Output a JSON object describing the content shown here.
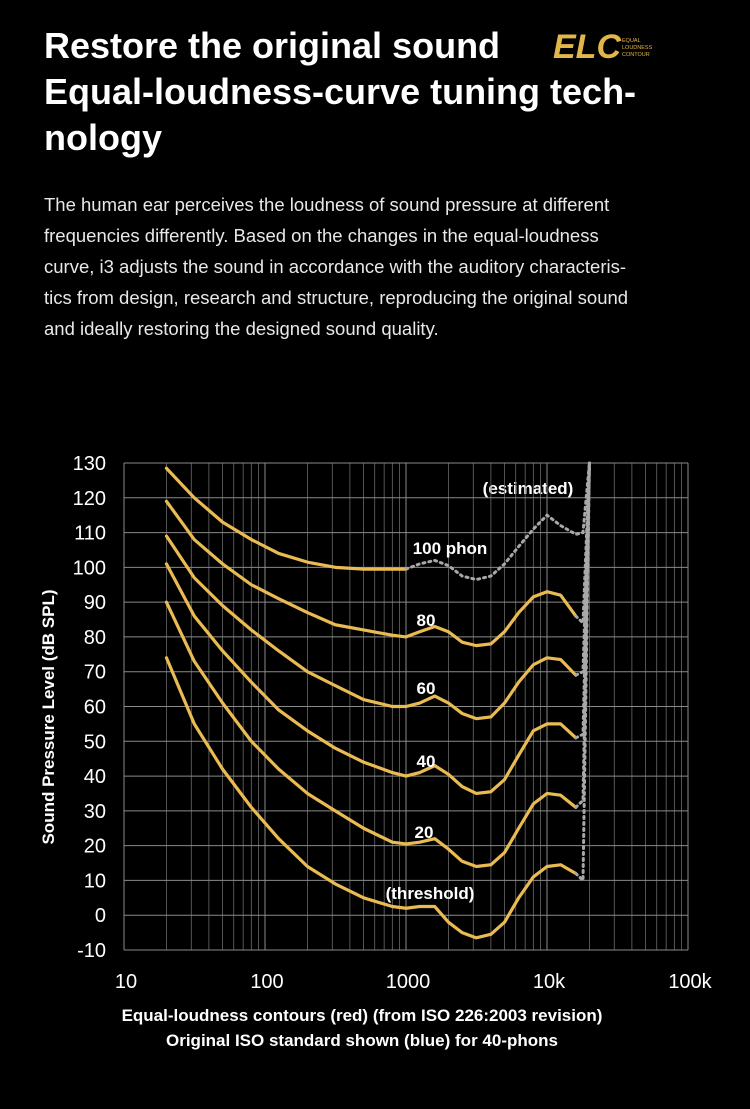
{
  "header": {
    "title": [
      "Restore the original sound",
      "Equal-loudness-curve tuning tech-",
      "nology"
    ],
    "logo": {
      "mark": "ELC",
      "lines": [
        "EQUAL",
        "LOUDNESS",
        "CONTOUR"
      ]
    }
  },
  "paragraph": [
    "The human ear perceives the loudness of sound pressure at different",
    "frequencies differently. Based on the changes in the equal-loudness",
    "curve, i3 adjusts the sound in accordance with the auditory characteris-",
    "tics from design, research and structure, reproducing the original sound",
    "and ideally restoring the designed sound quality."
  ],
  "chart_data": {
    "type": "line",
    "x_label": "Equal-loudness contours (red) (from ISO 226:2003 revision)",
    "x_label_2": "Original ISO standard shown (blue) for 40-phons",
    "y_label": "Sound Pressure Level (dB SPL)",
    "annotations": [
      "(estimated)"
    ],
    "x_scale": "log",
    "grid": true,
    "xlim": [
      10,
      100000
    ],
    "xticks": [
      10,
      100,
      1000,
      {
        "value": 10000,
        "label": "10k"
      },
      {
        "value": 100000,
        "label": "100k"
      }
    ],
    "ylim": [
      -10,
      130
    ],
    "yticks": [
      -10,
      0,
      10,
      20,
      30,
      40,
      50,
      60,
      70,
      80,
      90,
      100,
      110,
      120,
      130
    ],
    "estimated_color": "#a8a8a8",
    "x": [
      20,
      31.5,
      50,
      80,
      125,
      200,
      315,
      500,
      800,
      1000,
      1250,
      1600,
      2000,
      2500,
      3150,
      4000,
      5000,
      6300,
      8000,
      10000,
      12500,
      16000,
      18000,
      20000
    ],
    "series": [
      {
        "name": "(threshold)",
        "color": "#e9bb52",
        "values": [
          74,
          55,
          42,
          31,
          22,
          14,
          9,
          5,
          2.5,
          2,
          2.5,
          2.5,
          -2,
          -5,
          -6.5,
          -5.5,
          -2,
          5,
          11,
          14,
          14.5,
          12,
          null,
          null
        ],
        "estimated": [
          null,
          null,
          null,
          null,
          null,
          null,
          null,
          null,
          null,
          null,
          null,
          null,
          null,
          null,
          null,
          null,
          null,
          null,
          null,
          null,
          null,
          null,
          10,
          130
        ]
      },
      {
        "name": "20",
        "color": "#e9bb52",
        "values": [
          90,
          73,
          61,
          50,
          42,
          35,
          30,
          25,
          21,
          20.5,
          21,
          22,
          19,
          15.5,
          14,
          14.5,
          18,
          25,
          32,
          35,
          34.5,
          31,
          null,
          null
        ],
        "estimated": [
          null,
          null,
          null,
          null,
          null,
          null,
          null,
          null,
          null,
          null,
          null,
          null,
          null,
          null,
          null,
          null,
          null,
          null,
          null,
          null,
          null,
          null,
          33,
          130
        ]
      },
      {
        "name": "40",
        "color": "#e9bb52",
        "values": [
          101,
          86,
          76,
          67,
          59,
          53,
          48,
          44,
          41,
          40,
          41,
          43,
          40.5,
          37,
          35,
          35.5,
          39,
          46,
          53,
          55,
          55,
          51,
          null,
          null
        ],
        "estimated": [
          null,
          null,
          null,
          null,
          null,
          null,
          null,
          null,
          null,
          null,
          null,
          null,
          null,
          null,
          null,
          null,
          null,
          null,
          null,
          null,
          null,
          null,
          52,
          130
        ]
      },
      {
        "name": "60",
        "color": "#e9bb52",
        "values": [
          109,
          97,
          89,
          82,
          76,
          70,
          66,
          62,
          60,
          60,
          61,
          63,
          61,
          58,
          56.5,
          57,
          61,
          67,
          72,
          74,
          73.5,
          69,
          null,
          null
        ],
        "estimated": [
          null,
          null,
          null,
          null,
          null,
          null,
          null,
          null,
          null,
          null,
          null,
          null,
          null,
          null,
          null,
          null,
          null,
          null,
          null,
          null,
          null,
          null,
          70,
          130
        ]
      },
      {
        "name": "80",
        "color": "#e9bb52",
        "values": [
          119,
          108,
          101,
          95,
          91,
          87,
          83.5,
          82,
          80.5,
          80,
          81.5,
          83,
          81.5,
          78.5,
          77.5,
          78,
          81.5,
          87,
          91.5,
          93,
          92,
          86,
          null,
          null
        ],
        "estimated": [
          null,
          null,
          null,
          null,
          null,
          null,
          null,
          null,
          null,
          null,
          null,
          null,
          null,
          null,
          null,
          null,
          null,
          null,
          null,
          null,
          null,
          null,
          84,
          130
        ]
      },
      {
        "name": "100 phon",
        "color": "#e9bb52",
        "values": [
          128.5,
          120,
          113,
          108,
          104,
          101.5,
          100,
          99.5,
          99.5,
          99.5,
          null,
          null,
          null,
          null,
          null,
          null,
          null,
          null,
          null,
          null,
          null,
          null,
          null,
          null
        ],
        "estimated": [
          null,
          null,
          null,
          null,
          null,
          null,
          null,
          null,
          null,
          null,
          101,
          102,
          100.5,
          97.5,
          96.5,
          97.5,
          101,
          106,
          111,
          115,
          112,
          109.5,
          110,
          130
        ]
      }
    ]
  }
}
